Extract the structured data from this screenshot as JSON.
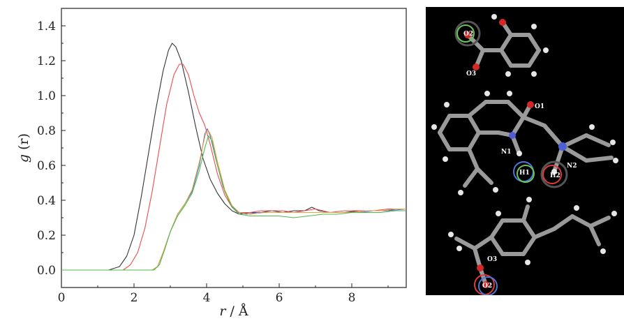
{
  "chart_data": {
    "type": "line",
    "xlabel_var": "r",
    "xlabel_unit": " / Å",
    "ylabel_var": "g",
    "ylabel_arg": " (r)",
    "xlim": [
      0,
      9.5
    ],
    "ylim": [
      -0.1,
      1.5
    ],
    "xticks": [
      "0",
      "2",
      "4",
      "6",
      "8"
    ],
    "yticks": [
      "0.0",
      "0.2",
      "0.4",
      "0.6",
      "0.8",
      "1.0",
      "1.2",
      "1.4"
    ],
    "grid": false,
    "legend": "none",
    "series": [
      {
        "color": "#333333",
        "points": [
          [
            0,
            0
          ],
          [
            1.3,
            0
          ],
          [
            1.6,
            0.02
          ],
          [
            1.8,
            0.08
          ],
          [
            2.0,
            0.2
          ],
          [
            2.2,
            0.42
          ],
          [
            2.4,
            0.67
          ],
          [
            2.6,
            0.92
          ],
          [
            2.8,
            1.14
          ],
          [
            2.95,
            1.26
          ],
          [
            3.05,
            1.3
          ],
          [
            3.15,
            1.28
          ],
          [
            3.3,
            1.2
          ],
          [
            3.5,
            1.02
          ],
          [
            3.7,
            0.82
          ],
          [
            3.9,
            0.64
          ],
          [
            4.1,
            0.52
          ],
          [
            4.3,
            0.44
          ],
          [
            4.5,
            0.38
          ],
          [
            4.7,
            0.34
          ],
          [
            4.9,
            0.32
          ],
          [
            5.2,
            0.33
          ],
          [
            5.5,
            0.33
          ],
          [
            5.8,
            0.34
          ],
          [
            6.1,
            0.33
          ],
          [
            6.4,
            0.34
          ],
          [
            6.7,
            0.34
          ],
          [
            6.9,
            0.36
          ],
          [
            7.1,
            0.34
          ],
          [
            7.4,
            0.33
          ],
          [
            7.8,
            0.33
          ],
          [
            8.2,
            0.34
          ],
          [
            8.6,
            0.34
          ],
          [
            9.0,
            0.34
          ],
          [
            9.2,
            0.35
          ],
          [
            9.5,
            0.35
          ]
        ]
      },
      {
        "color": "#f04a4a",
        "points": [
          [
            0,
            0
          ],
          [
            1.7,
            0
          ],
          [
            1.9,
            0.03
          ],
          [
            2.1,
            0.1
          ],
          [
            2.3,
            0.24
          ],
          [
            2.5,
            0.45
          ],
          [
            2.7,
            0.7
          ],
          [
            2.9,
            0.95
          ],
          [
            3.1,
            1.12
          ],
          [
            3.25,
            1.18
          ],
          [
            3.35,
            1.18
          ],
          [
            3.5,
            1.12
          ],
          [
            3.65,
            1.0
          ],
          [
            3.8,
            0.9
          ],
          [
            3.95,
            0.83
          ],
          [
            4.1,
            0.72
          ],
          [
            4.3,
            0.55
          ],
          [
            4.5,
            0.43
          ],
          [
            4.7,
            0.36
          ],
          [
            4.9,
            0.33
          ],
          [
            5.2,
            0.33
          ],
          [
            5.5,
            0.34
          ],
          [
            5.8,
            0.34
          ],
          [
            6.1,
            0.34
          ],
          [
            6.4,
            0.33
          ],
          [
            6.7,
            0.34
          ],
          [
            7.0,
            0.35
          ],
          [
            7.2,
            0.34
          ],
          [
            7.4,
            0.33
          ],
          [
            7.8,
            0.34
          ],
          [
            8.2,
            0.34
          ],
          [
            8.6,
            0.34
          ],
          [
            9.0,
            0.35
          ],
          [
            9.3,
            0.35
          ],
          [
            9.5,
            0.35
          ]
        ]
      },
      {
        "color": "#4a6fd8",
        "points": [
          [
            0,
            0
          ],
          [
            2.5,
            0
          ],
          [
            2.65,
            0.02
          ],
          [
            2.8,
            0.1
          ],
          [
            3.0,
            0.22
          ],
          [
            3.2,
            0.32
          ],
          [
            3.4,
            0.38
          ],
          [
            3.6,
            0.45
          ],
          [
            3.8,
            0.6
          ],
          [
            3.95,
            0.78
          ],
          [
            4.02,
            0.81
          ],
          [
            4.1,
            0.77
          ],
          [
            4.25,
            0.64
          ],
          [
            4.45,
            0.48
          ],
          [
            4.65,
            0.38
          ],
          [
            4.85,
            0.33
          ],
          [
            5.1,
            0.32
          ],
          [
            5.4,
            0.33
          ],
          [
            5.8,
            0.33
          ],
          [
            6.2,
            0.33
          ],
          [
            6.6,
            0.33
          ],
          [
            7.0,
            0.33
          ],
          [
            7.4,
            0.33
          ],
          [
            7.8,
            0.33
          ],
          [
            8.2,
            0.33
          ],
          [
            8.6,
            0.34
          ],
          [
            9.0,
            0.34
          ],
          [
            9.5,
            0.35
          ]
        ]
      },
      {
        "color": "#e8a347",
        "points": [
          [
            0,
            0
          ],
          [
            2.5,
            0
          ],
          [
            2.65,
            0.02
          ],
          [
            2.8,
            0.1
          ],
          [
            3.0,
            0.22
          ],
          [
            3.2,
            0.32
          ],
          [
            3.4,
            0.38
          ],
          [
            3.6,
            0.46
          ],
          [
            3.8,
            0.62
          ],
          [
            3.98,
            0.79
          ],
          [
            4.05,
            0.8
          ],
          [
            4.15,
            0.76
          ],
          [
            4.3,
            0.62
          ],
          [
            4.5,
            0.46
          ],
          [
            4.7,
            0.37
          ],
          [
            4.9,
            0.33
          ],
          [
            5.2,
            0.32
          ],
          [
            5.6,
            0.33
          ],
          [
            6.0,
            0.33
          ],
          [
            6.4,
            0.33
          ],
          [
            6.8,
            0.33
          ],
          [
            7.2,
            0.33
          ],
          [
            7.6,
            0.33
          ],
          [
            8.0,
            0.33
          ],
          [
            8.4,
            0.34
          ],
          [
            8.8,
            0.34
          ],
          [
            9.2,
            0.35
          ],
          [
            9.5,
            0.35
          ]
        ]
      },
      {
        "color": "#4fb84a",
        "points": [
          [
            0,
            0
          ],
          [
            2.55,
            0
          ],
          [
            2.7,
            0.03
          ],
          [
            2.85,
            0.12
          ],
          [
            3.0,
            0.22
          ],
          [
            3.2,
            0.31
          ],
          [
            3.4,
            0.37
          ],
          [
            3.6,
            0.44
          ],
          [
            3.8,
            0.57
          ],
          [
            3.95,
            0.7
          ],
          [
            4.05,
            0.77
          ],
          [
            4.15,
            0.74
          ],
          [
            4.3,
            0.6
          ],
          [
            4.5,
            0.45
          ],
          [
            4.7,
            0.36
          ],
          [
            4.9,
            0.32
          ],
          [
            5.2,
            0.31
          ],
          [
            5.6,
            0.31
          ],
          [
            6.0,
            0.31
          ],
          [
            6.4,
            0.3
          ],
          [
            6.8,
            0.31
          ],
          [
            7.2,
            0.32
          ],
          [
            7.6,
            0.32
          ],
          [
            8.0,
            0.33
          ],
          [
            8.4,
            0.33
          ],
          [
            8.8,
            0.33
          ],
          [
            9.2,
            0.34
          ],
          [
            9.5,
            0.34
          ]
        ]
      }
    ]
  },
  "molecule_panel": {
    "labels": {
      "o2_top": "O2",
      "o3_top": "O3",
      "o1_mid": "O1",
      "n1_mid": "N1",
      "h1_mid": "H1",
      "h2_mid": "H2",
      "n2_mid": "N2",
      "o3_bot": "O3",
      "o2_bot": "O2"
    }
  }
}
